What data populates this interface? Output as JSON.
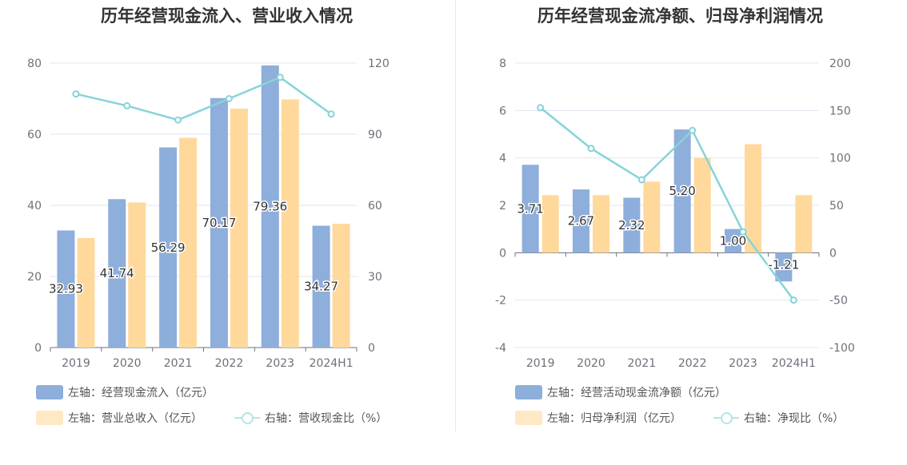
{
  "chart_data": [
    {
      "type": "bar",
      "title": "历年经营现金流入、营业收入情况",
      "categories": [
        "2019",
        "2020",
        "2021",
        "2022",
        "2023",
        "2024H1"
      ],
      "left_axis": {
        "ylim": [
          0,
          80
        ],
        "ticks": [
          "0",
          "20",
          "40",
          "60",
          "80"
        ]
      },
      "right_axis": {
        "ylim": [
          0,
          120
        ],
        "ticks": [
          "0",
          "30",
          "60",
          "90",
          "120"
        ]
      },
      "series": [
        {
          "name": "左轴：经营现金流入（亿元）",
          "type": "bar",
          "axis": "left",
          "color": "#8eaedb",
          "values": [
            32.93,
            41.74,
            56.29,
            70.17,
            79.36,
            34.27
          ],
          "labels": [
            "32.93",
            "41.74",
            "56.29",
            "70.17",
            "79.36",
            "34.27"
          ]
        },
        {
          "name": "左轴：营业总收入（亿元）",
          "type": "bar",
          "axis": "left",
          "color": "#ffd99b",
          "values": [
            30.8,
            40.8,
            59.0,
            67.2,
            69.8,
            34.8
          ]
        },
        {
          "name": "右轴：营收现金比（%）",
          "type": "line",
          "axis": "right",
          "color": "#86d4d8",
          "values": [
            107,
            102,
            96,
            105,
            114,
            98.5
          ]
        }
      ],
      "grid": true,
      "legend_position": "bottom"
    },
    {
      "type": "bar",
      "title": "历年经营现金流净额、归母净利润情况",
      "categories": [
        "2019",
        "2020",
        "2021",
        "2022",
        "2023",
        "2024H1"
      ],
      "left_axis": {
        "ylim": [
          -4,
          8
        ],
        "ticks": [
          "-4",
          "-2",
          "0",
          "2",
          "4",
          "6",
          "8"
        ]
      },
      "right_axis": {
        "ylim": [
          -100,
          200
        ],
        "ticks": [
          "-100",
          "-50",
          "0",
          "50",
          "100",
          "150",
          "200"
        ]
      },
      "series": [
        {
          "name": "左轴：经营活动现金流净额（亿元）",
          "type": "bar",
          "axis": "left",
          "color": "#8eaedb",
          "values": [
            3.71,
            2.67,
            2.32,
            5.2,
            1.0,
            -1.21
          ],
          "labels": [
            "3.71",
            "2.67",
            "2.32",
            "5.20",
            "1.00",
            "-1.21"
          ]
        },
        {
          "name": "左轴：归母净利润（亿元）",
          "type": "bar",
          "axis": "left",
          "color": "#ffd99b",
          "values": [
            2.43,
            2.43,
            3.0,
            4.0,
            4.58,
            2.43
          ]
        },
        {
          "name": "右轴：净现比（%）",
          "type": "line",
          "axis": "right",
          "color": "#86d4d8",
          "values": [
            153,
            110,
            77,
            129,
            22,
            -50
          ]
        }
      ],
      "grid": true,
      "legend_position": "bottom"
    }
  ]
}
